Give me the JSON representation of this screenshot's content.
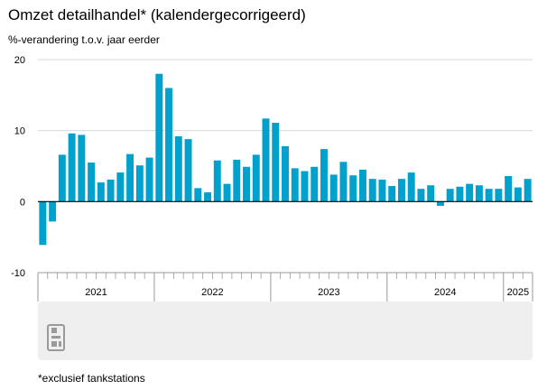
{
  "header": {
    "title": "Omzet detailhandel* (kalendergecorrigeerd)",
    "subtitle": "%-verandering t.o.v. jaar eerder"
  },
  "footer": {
    "footnote": "*exclusief tankstations"
  },
  "logo": {
    "icon": "cbs-logo-icon"
  },
  "chart_data": {
    "type": "bar",
    "ylabel": "%-verandering t.o.v. jaar eerder",
    "xlabel": "",
    "ylim": [
      -10,
      20
    ],
    "yticks": [
      -10,
      0,
      10,
      20
    ],
    "grid": true,
    "bar_color": "#00a1cd",
    "axis_color": "#000000",
    "grid_color": "#d9d9d9",
    "timeline_color": "#efefef",
    "start_month": "2021-01",
    "years": [
      "2021",
      "2022",
      "2023",
      "2024",
      "2025"
    ],
    "values": [
      -6.1,
      -2.8,
      6.6,
      9.6,
      9.4,
      5.5,
      2.7,
      3.1,
      4.1,
      6.7,
      5.1,
      6.2,
      18.0,
      16.0,
      9.2,
      8.8,
      1.9,
      1.3,
      5.8,
      2.5,
      5.9,
      4.9,
      6.6,
      11.7,
      11.1,
      7.8,
      4.7,
      4.3,
      4.9,
      7.4,
      3.8,
      5.6,
      3.7,
      4.5,
      3.2,
      3.1,
      2.2,
      3.2,
      4.1,
      1.8,
      2.3,
      -0.6,
      1.8,
      2.1,
      2.5,
      2.3,
      1.8,
      1.8,
      3.6,
      2.0,
      3.2
    ]
  }
}
